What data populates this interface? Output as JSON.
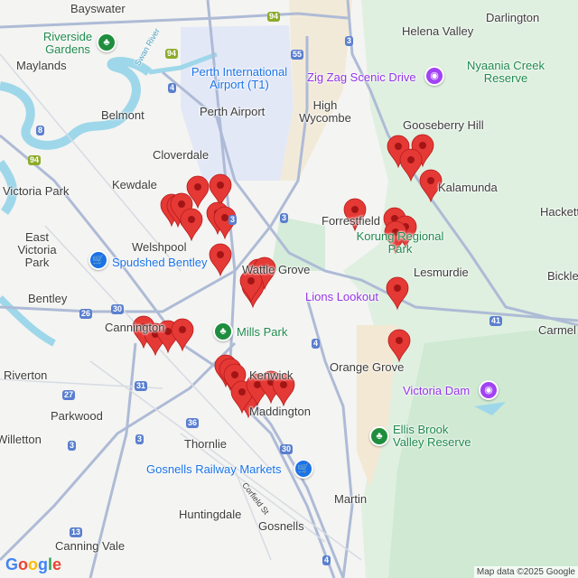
{
  "map": {
    "places": [
      {
        "name": "Bayswater",
        "type": "suburb"
      },
      {
        "name": "Darlington",
        "type": "suburb"
      },
      {
        "name": "Helena Valley",
        "type": "suburb"
      },
      {
        "name": "Riverside Gardens",
        "type": "park"
      },
      {
        "name": "Maylands",
        "type": "suburb"
      },
      {
        "name": "Perth International Airport (T1)",
        "type": "airport"
      },
      {
        "name": "Zig Zag Scenic Drive",
        "type": "attraction"
      },
      {
        "name": "Nyaania Creek Reserve",
        "type": "park"
      },
      {
        "name": "Belmont",
        "type": "suburb"
      },
      {
        "name": "Perth Airport",
        "type": "suburb"
      },
      {
        "name": "High Wycombe",
        "type": "suburb"
      },
      {
        "name": "Gooseberry Hill",
        "type": "suburb"
      },
      {
        "name": "Cloverdale",
        "type": "suburb"
      },
      {
        "name": "Kewdale",
        "type": "suburb"
      },
      {
        "name": "Victoria Park",
        "type": "suburb"
      },
      {
        "name": "Kalamunda",
        "type": "suburb"
      },
      {
        "name": "Hacketts",
        "type": "suburb"
      },
      {
        "name": "Forrestfield",
        "type": "suburb"
      },
      {
        "name": "East Victoria Park",
        "type": "suburb"
      },
      {
        "name": "Welshpool",
        "type": "suburb"
      },
      {
        "name": "Korung Regional Park",
        "type": "park"
      },
      {
        "name": "Spudshed Bentley",
        "type": "shop"
      },
      {
        "name": "Wattle Grove",
        "type": "suburb"
      },
      {
        "name": "Lesmurdie",
        "type": "suburb"
      },
      {
        "name": "Bickley",
        "type": "suburb"
      },
      {
        "name": "Bentley",
        "type": "suburb"
      },
      {
        "name": "Lions Lookout",
        "type": "attraction"
      },
      {
        "name": "Cannington",
        "type": "suburb"
      },
      {
        "name": "Mills Park",
        "type": "park"
      },
      {
        "name": "Carmel",
        "type": "suburb"
      },
      {
        "name": "Riverton",
        "type": "suburb"
      },
      {
        "name": "Orange Grove",
        "type": "suburb"
      },
      {
        "name": "Kenwick",
        "type": "suburb"
      },
      {
        "name": "Victoria Dam",
        "type": "attraction"
      },
      {
        "name": "Parkwood",
        "type": "suburb"
      },
      {
        "name": "Maddington",
        "type": "suburb"
      },
      {
        "name": "Willetton",
        "type": "suburb"
      },
      {
        "name": "Ellis Brook Valley Reserve",
        "type": "park"
      },
      {
        "name": "Thornlie",
        "type": "suburb"
      },
      {
        "name": "Gosnells Railway Markets",
        "type": "shop"
      },
      {
        "name": "Corfield St",
        "type": "street"
      },
      {
        "name": "Martin",
        "type": "suburb"
      },
      {
        "name": "Huntingdale",
        "type": "suburb"
      },
      {
        "name": "Gosnells",
        "type": "suburb"
      },
      {
        "name": "Canning Vale",
        "type": "suburb"
      },
      {
        "name": "Swan River",
        "type": "river"
      }
    ],
    "route_shields": [
      "94",
      "94",
      "94",
      "55",
      "3",
      "4",
      "8",
      "3",
      "3",
      "30",
      "26",
      "31",
      "27",
      "36",
      "3",
      "3",
      "30",
      "4",
      "41",
      "13",
      "4"
    ],
    "marker_color": "#e53935",
    "marker_count": 35,
    "logo": "Google",
    "attribution": "Map data ©2025 Google"
  }
}
